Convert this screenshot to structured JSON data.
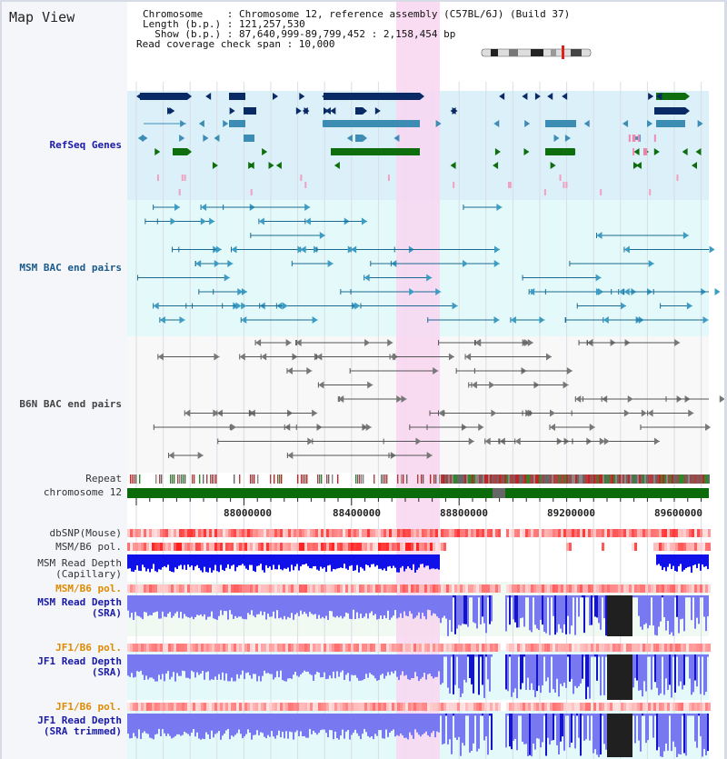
{
  "app": {
    "title": "Map View"
  },
  "info": {
    "chromosome": "Chromosome    : Chromosome 12, reference assembly (C57BL/6J) (Build 37)",
    "length": "Length (b.p.) : 121,257,530",
    "show": "  Show (b.p.) : 87,640,999-89,799,452 : 2,158,454 bp",
    "coverage": "Read coverage check span : 10,000"
  },
  "tracks": {
    "refseq": "RefSeq Genes",
    "msm_bac": "MSM BAC end pairs",
    "b6n_bac": "B6N BAC end pairs",
    "repeat": "Repeat",
    "chromosome": "chromosome 12",
    "dbsnp": "dbSNP(Mouse)",
    "msm_b6_pol": "MSM/B6 pol.",
    "msm_depth_cap_1": "MSM Read Depth",
    "msm_depth_cap_2": "(Capillary)",
    "msm_b6_pol2": "MSM/B6 pol.",
    "msm_depth_sra_1": "MSM Read Depth",
    "msm_depth_sra_2": "(SRA)",
    "jf1_b6_pol": "JF1/B6 pol.",
    "jf1_depth_sra_1": "JF1 Read Depth",
    "jf1_depth_sra_2": "(SRA)",
    "jf1_b6_pol2": "JF1/B6 pol.",
    "jf1_depth_trim_1": "JF1 Read Depth",
    "jf1_depth_trim_2": "(SRA trimmed)"
  },
  "axis": {
    "ticks": [
      "88000000",
      "88400000",
      "88800000",
      "89200000",
      "89600000"
    ]
  },
  "colors": {
    "refseq_bg": "#dcf0fa",
    "bac_bg": "#e4fafa",
    "highlight": "#f8d6f0",
    "gene_navy": "#0a2a66",
    "gene_steel": "#3c8cb4",
    "gene_green": "#0e6e0e",
    "chrom_green": "#0b6b0b",
    "depth_blue": "#1010e8",
    "depth_light": "#7878f0"
  },
  "icons": {
    "ideogram": "chromosome-ideogram-icon"
  }
}
